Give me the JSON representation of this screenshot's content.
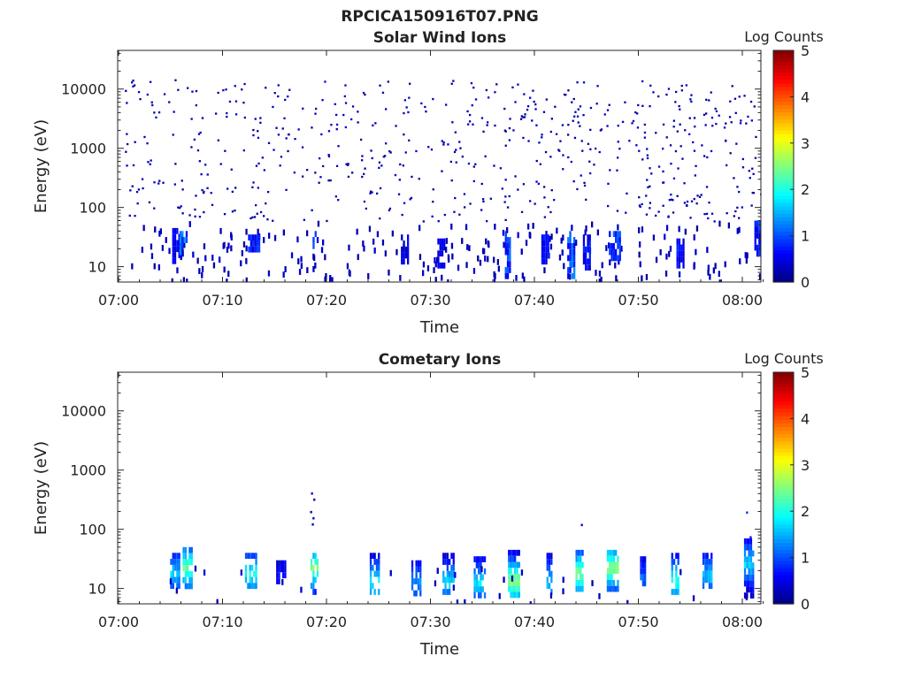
{
  "figure": {
    "title": "RPCICA150916T07.PNG"
  },
  "chart_data": [
    {
      "type": "heatmap",
      "title": "Solar Wind Ions",
      "xlabel": "Time",
      "ylabel": "Energy (eV)",
      "x_ticks": [
        "07:00",
        "07:10",
        "07:20",
        "07:30",
        "07:40",
        "07:50",
        "08:00"
      ],
      "x_range_minutes": [
        0,
        62
      ],
      "y_ticks": [
        "10",
        "100",
        "1000",
        "10000"
      ],
      "y_scale": "log",
      "y_range": [
        5.5,
        45000
      ],
      "colorbar": {
        "label": "Log Counts",
        "range": [
          0,
          5
        ],
        "ticks": [
          "0",
          "1",
          "2",
          "3",
          "4",
          "5"
        ],
        "colormap": "jet"
      },
      "low_energy_bursts": [
        {
          "t": 5.5,
          "e_lo": 12,
          "e_hi": 45,
          "v": 0.6
        },
        {
          "t": 6.2,
          "e_lo": 18,
          "e_hi": 40,
          "v": 1.2
        },
        {
          "t": 12.8,
          "e_lo": 20,
          "e_hi": 35,
          "v": 0.8
        },
        {
          "t": 19.0,
          "e_lo": 20,
          "e_hi": 40,
          "v": 1.0
        },
        {
          "t": 27.5,
          "e_lo": 12,
          "e_hi": 35,
          "v": 0.6
        },
        {
          "t": 31.0,
          "e_lo": 10,
          "e_hi": 30,
          "v": 0.6
        },
        {
          "t": 37.5,
          "e_lo": 7,
          "e_hi": 40,
          "v": 1.0
        },
        {
          "t": 41.0,
          "e_lo": 12,
          "e_hi": 35,
          "v": 0.7
        },
        {
          "t": 43.5,
          "e_lo": 7,
          "e_hi": 40,
          "v": 1.1
        },
        {
          "t": 45.0,
          "e_lo": 10,
          "e_hi": 35,
          "v": 0.8
        },
        {
          "t": 47.5,
          "e_lo": 15,
          "e_hi": 40,
          "v": 1.0
        },
        {
          "t": 54.0,
          "e_lo": 10,
          "e_hi": 30,
          "v": 0.7
        },
        {
          "t": 61.5,
          "e_lo": 15,
          "e_hi": 60,
          "v": 0.8
        }
      ],
      "scatter_density": "sparse single counts 60–15000 eV throughout"
    },
    {
      "type": "heatmap",
      "title": "Cometary Ions",
      "xlabel": "Time",
      "ylabel": "Energy (eV)",
      "x_ticks": [
        "07:00",
        "07:10",
        "07:20",
        "07:30",
        "07:40",
        "07:50",
        "08:00"
      ],
      "x_range_minutes": [
        0,
        62
      ],
      "y_ticks": [
        "10",
        "100",
        "1000",
        "10000"
      ],
      "y_scale": "log",
      "y_range": [
        5.5,
        45000
      ],
      "colorbar": {
        "label": "Log Counts",
        "range": [
          0,
          5
        ],
        "ticks": [
          "0",
          "1",
          "2",
          "3",
          "4",
          "5"
        ],
        "colormap": "jet"
      },
      "bursts": [
        {
          "t": 5.3,
          "e_lo": 10,
          "e_hi": 40,
          "v": 1.5,
          "peak_e": 20
        },
        {
          "t": 6.5,
          "e_lo": 12,
          "e_hi": 50,
          "v": 2.3,
          "peak_e": 25
        },
        {
          "t": 12.5,
          "e_lo": 12,
          "e_hi": 40,
          "v": 1.8,
          "peak_e": 20
        },
        {
          "t": 15.5,
          "e_lo": 12,
          "e_hi": 30,
          "v": 0.5,
          "peak_e": 18
        },
        {
          "t": 18.8,
          "e_lo": 9,
          "e_hi": 40,
          "v": 2.4,
          "peak_e": 25
        },
        {
          "t": 24.5,
          "e_lo": 8,
          "e_hi": 40,
          "v": 1.8,
          "peak_e": 14
        },
        {
          "t": 28.5,
          "e_lo": 8,
          "e_hi": 30,
          "v": 1.2,
          "peak_e": 14
        },
        {
          "t": 31.5,
          "e_lo": 8,
          "e_hi": 40,
          "v": 1.6,
          "peak_e": 14
        },
        {
          "t": 34.5,
          "e_lo": 8,
          "e_hi": 35,
          "v": 1.6,
          "peak_e": 14
        },
        {
          "t": 37.8,
          "e_lo": 8,
          "e_hi": 45,
          "v": 2.5,
          "peak_e": 15
        },
        {
          "t": 41.5,
          "e_lo": 8,
          "e_hi": 40,
          "v": 1.5,
          "peak_e": 14
        },
        {
          "t": 44.3,
          "e_lo": 10,
          "e_hi": 45,
          "v": 2.4,
          "peak_e": 20
        },
        {
          "t": 47.3,
          "e_lo": 10,
          "e_hi": 45,
          "v": 2.5,
          "peak_e": 25
        },
        {
          "t": 50.5,
          "e_lo": 10,
          "e_hi": 35,
          "v": 1.0,
          "peak_e": 15
        },
        {
          "t": 53.5,
          "e_lo": 9,
          "e_hi": 40,
          "v": 1.9,
          "peak_e": 15
        },
        {
          "t": 56.5,
          "e_lo": 10,
          "e_hi": 40,
          "v": 1.5,
          "peak_e": 18
        },
        {
          "t": 60.5,
          "e_lo": 8,
          "e_hi": 70,
          "v": 1.6,
          "peak_e": 30
        }
      ],
      "sparse_high_energy": [
        {
          "t": 18.5,
          "e_lo": 70,
          "e_hi": 420,
          "v": 0.3
        },
        {
          "t": 44.3,
          "e_lo": 80,
          "e_hi": 200,
          "v": 0.3
        },
        {
          "t": 60.5,
          "e_lo": 70,
          "e_hi": 200,
          "v": 0.6
        }
      ]
    }
  ]
}
